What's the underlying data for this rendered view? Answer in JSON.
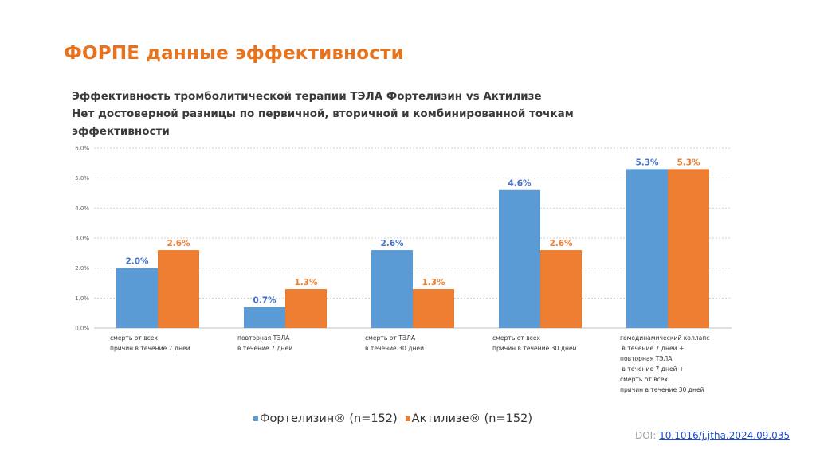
{
  "slide": {
    "title": "ФОРПЕ данные эффективности",
    "doi_label": "DOI:",
    "doi_link": "10.1016/j.jtha.2024.09.035"
  },
  "chart_data": {
    "type": "bar",
    "title_lines": [
      "Эффективность тромболитической терапии ТЭЛА Фортелизин vs Актилизе",
      "Нет достоверной разницы по первичной, вторичной и комбинированной точкам",
      "эффективности"
    ],
    "categories": [
      [
        "смерть от всех",
        "причин в течение 7 дней"
      ],
      [
        "повторная ТЭЛА",
        "в течение 7 дней"
      ],
      [
        "смерть от ТЭЛА",
        "в течение 30 дней"
      ],
      [
        "смерть от всех",
        "причин в течение 30 дней"
      ],
      [
        "гемодинамический коллапс",
        " в течение 7 дней +",
        "повторная ТЭЛА",
        " в течение 7 дней +",
        "смерть от всех",
        "причин в течение 30 дней"
      ]
    ],
    "series": [
      {
        "name": "Фортелизин® (n=152)",
        "color": "#5B9BD5",
        "label_color": "#4472C4",
        "values": [
          2.0,
          0.7,
          2.6,
          4.6,
          5.3
        ],
        "labels": [
          "2.0%",
          "0.7%",
          "2.6%",
          "4.6%",
          "5.3%"
        ]
      },
      {
        "name": "Актилизе® (n=152)",
        "color": "#ED7D31",
        "label_color": "#ED7D31",
        "values": [
          2.6,
          1.3,
          1.3,
          2.6,
          5.3
        ],
        "labels": [
          "2.6%",
          "1.3%",
          "1.3%",
          "2.6%",
          "5.3%"
        ]
      }
    ],
    "y_ticks": [
      "0.0%",
      "1.0%",
      "2.0%",
      "3.0%",
      "4.0%",
      "5.0%",
      "6.0%"
    ],
    "ylim": [
      0,
      6
    ],
    "grid": "dashed horizontal",
    "legend_position": "bottom"
  }
}
